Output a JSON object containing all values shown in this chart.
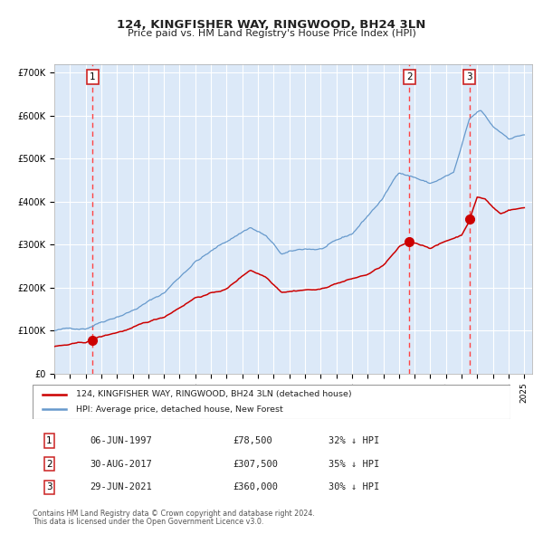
{
  "title1": "124, KINGFISHER WAY, RINGWOOD, BH24 3LN",
  "title2": "Price paid vs. HM Land Registry's House Price Index (HPI)",
  "ylabel": "",
  "xlim": [
    1995.0,
    2025.5
  ],
  "ylim": [
    0,
    720000
  ],
  "yticks": [
    0,
    100000,
    200000,
    300000,
    400000,
    500000,
    600000,
    700000
  ],
  "ytick_labels": [
    "£0",
    "£100K",
    "£200K",
    "£300K",
    "£400K",
    "£500K",
    "£600K",
    "£700K"
  ],
  "xticks": [
    1995,
    1996,
    1997,
    1998,
    1999,
    2000,
    2001,
    2002,
    2003,
    2004,
    2005,
    2006,
    2007,
    2008,
    2009,
    2010,
    2011,
    2012,
    2013,
    2014,
    2015,
    2016,
    2017,
    2018,
    2019,
    2020,
    2021,
    2022,
    2023,
    2024,
    2025
  ],
  "background_color": "#dce9f8",
  "plot_bg": "#dce9f8",
  "grid_color": "#ffffff",
  "red_line_color": "#cc0000",
  "blue_line_color": "#6699cc",
  "dot_color": "#cc0000",
  "vline_color": "#ff4444",
  "sale_dates": [
    1997.43,
    2017.66,
    2021.49
  ],
  "sale_prices": [
    78500,
    307500,
    360000
  ],
  "legend_line1": "124, KINGFISHER WAY, RINGWOOD, BH24 3LN (detached house)",
  "legend_line2": "HPI: Average price, detached house, New Forest",
  "table_data": [
    [
      "1",
      "06-JUN-1997",
      "£78,500",
      "32% ↓ HPI"
    ],
    [
      "2",
      "30-AUG-2017",
      "£307,500",
      "35% ↓ HPI"
    ],
    [
      "3",
      "29-JUN-2021",
      "£360,000",
      "30% ↓ HPI"
    ]
  ],
  "footnote1": "Contains HM Land Registry data © Crown copyright and database right 2024.",
  "footnote2": "This data is licensed under the Open Government Licence v3.0."
}
